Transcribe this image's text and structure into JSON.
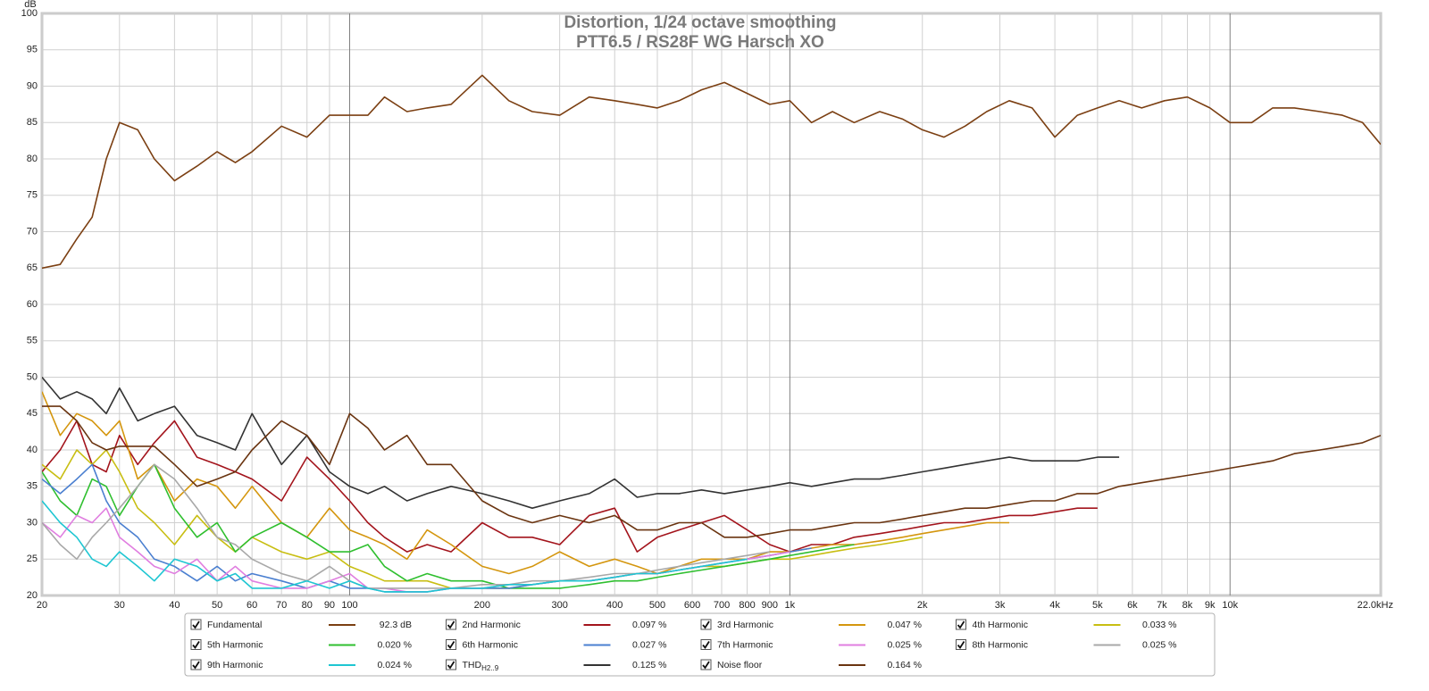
{
  "chart_data": {
    "type": "line",
    "title": "Distortion, 1/24 octave smoothing",
    "subtitle": "PTT6.5 / RS28F WG Harsch XO",
    "y_label": "dB",
    "log_x": true,
    "grid": true,
    "xlim": [
      20,
      22000
    ],
    "ylim": [
      20,
      100
    ],
    "yticks": [
      20,
      25,
      30,
      35,
      40,
      45,
      50,
      55,
      60,
      65,
      70,
      75,
      80,
      85,
      90,
      95,
      100
    ],
    "xticks": [
      20,
      30,
      40,
      50,
      60,
      70,
      80,
      90,
      100,
      200,
      300,
      400,
      500,
      600,
      700,
      800,
      900,
      {
        "value": 1000,
        "label": "1k"
      },
      {
        "value": 2000,
        "label": "2k"
      },
      {
        "value": 3000,
        "label": "3k"
      },
      {
        "value": 4000,
        "label": "4k"
      },
      {
        "value": 5000,
        "label": "5k"
      },
      {
        "value": 6000,
        "label": "6k"
      },
      {
        "value": 7000,
        "label": "7k"
      },
      {
        "value": 8000,
        "label": "8k"
      },
      {
        "value": 9000,
        "label": "9k"
      },
      {
        "value": 10000,
        "label": "10k"
      },
      {
        "value": 22000,
        "label": "22.0kHz"
      }
    ],
    "x": [
      20,
      22,
      24,
      26,
      28,
      30,
      33,
      36,
      40,
      45,
      50,
      55,
      60,
      70,
      80,
      90,
      100,
      110,
      120,
      135,
      150,
      170,
      200,
      230,
      260,
      300,
      350,
      400,
      450,
      500,
      560,
      630,
      710,
      800,
      900,
      1000,
      1120,
      1250,
      1400,
      1600,
      1800,
      2000,
      2240,
      2500,
      2800,
      3150,
      3550,
      4000,
      4500,
      5000,
      5600,
      6300,
      7100,
      8000,
      9000,
      10000,
      11200,
      12500,
      14000,
      16000,
      18000,
      20000,
      22000
    ],
    "series": [
      {
        "name": "Fundamental",
        "color": "#7b3f12",
        "readout": "92.3 dB",
        "values": [
          65,
          65.5,
          69,
          72,
          80,
          85,
          84,
          80,
          77,
          79,
          81,
          79.5,
          81,
          84.5,
          83,
          86,
          86,
          86,
          88.5,
          86.5,
          87,
          87.5,
          91.5,
          88,
          86.5,
          86,
          88.5,
          88,
          87.5,
          87,
          88,
          89.5,
          90.5,
          89,
          87.5,
          88,
          85,
          86.5,
          85,
          86.5,
          85.5,
          84,
          83,
          84.5,
          86.5,
          88,
          87,
          83,
          86,
          87,
          88,
          87,
          88,
          88.5,
          87,
          85,
          85,
          87,
          87,
          86.5,
          86,
          85,
          82
        ]
      },
      {
        "name": "2nd Harmonic",
        "color": "#a3141c",
        "readout": "0.097 %",
        "values": [
          37,
          40,
          44,
          38,
          37,
          42,
          38,
          41,
          44,
          39,
          38,
          37,
          36,
          33,
          39,
          36,
          33,
          30,
          28,
          26,
          27,
          26,
          30,
          28,
          28,
          27,
          31,
          32,
          26,
          28,
          29,
          30,
          31,
          29,
          27,
          26,
          27,
          27,
          28,
          28.5,
          29,
          29.5,
          30,
          30,
          30.5,
          31,
          31,
          31.5,
          32,
          32,
          null,
          null,
          null,
          null,
          null,
          null,
          null,
          null,
          null,
          null,
          null,
          null,
          null
        ]
      },
      {
        "name": "3rd Harmonic",
        "color": "#d4960e",
        "readout": "0.047 %",
        "values": [
          48,
          42,
          45,
          44,
          42,
          44,
          36,
          38,
          33,
          36,
          35,
          32,
          35,
          30,
          28,
          32,
          29,
          28,
          27,
          25,
          29,
          27,
          24,
          23,
          24,
          26,
          24,
          25,
          24,
          23,
          24,
          25,
          25,
          25,
          26,
          26,
          26.5,
          27,
          27,
          27.5,
          28,
          28.5,
          29,
          29.5,
          30,
          30,
          null,
          null,
          null,
          null,
          null,
          null,
          null,
          null,
          null,
          null,
          null,
          null,
          null,
          null,
          null,
          null,
          null
        ]
      },
      {
        "name": "4th Harmonic",
        "color": "#c8be12",
        "readout": "0.033 %",
        "values": [
          38,
          36,
          40,
          38,
          40,
          37,
          32,
          30,
          27,
          31,
          28,
          26,
          28,
          26,
          25,
          26,
          24,
          23,
          22,
          22,
          22,
          21,
          21,
          21,
          21.5,
          22,
          22,
          22.5,
          23,
          23,
          23.5,
          24,
          24,
          24.5,
          25,
          25,
          25.5,
          26,
          26.5,
          27,
          27.5,
          28,
          null,
          null,
          null,
          null,
          null,
          null,
          null,
          null,
          null,
          null,
          null,
          null,
          null,
          null,
          null,
          null,
          null,
          null,
          null,
          null,
          null
        ]
      },
      {
        "name": "5th Harmonic",
        "color": "#2fbf2f",
        "readout": "0.020 %",
        "values": [
          37,
          33,
          31,
          36,
          35,
          31,
          35,
          38,
          32,
          28,
          30,
          26,
          28,
          30,
          28,
          26,
          26,
          27,
          24,
          22,
          23,
          22,
          22,
          21,
          21,
          21,
          21.5,
          22,
          22,
          22.5,
          23,
          23.5,
          24,
          24.5,
          25,
          25.5,
          26,
          26.5,
          27,
          null,
          null,
          null,
          null,
          null,
          null,
          null,
          null,
          null,
          null,
          null,
          null,
          null,
          null,
          null,
          null,
          null,
          null,
          null,
          null,
          null,
          null,
          null,
          null
        ]
      },
      {
        "name": "6th Harmonic",
        "color": "#4a7fd0",
        "readout": "0.027 %",
        "values": [
          36,
          34,
          36,
          38,
          33,
          30,
          28,
          25,
          24,
          22,
          24,
          22,
          23,
          22,
          21,
          22,
          21,
          21,
          20.5,
          20.5,
          20.5,
          21,
          21,
          21,
          21.5,
          22,
          22,
          22.5,
          23,
          23,
          23.5,
          24,
          24.5,
          25,
          25.5,
          26,
          26.5,
          null,
          null,
          null,
          null,
          null,
          null,
          null,
          null,
          null,
          null,
          null,
          null,
          null,
          null,
          null,
          null,
          null,
          null,
          null,
          null,
          null,
          null,
          null,
          null,
          null,
          null
        ]
      },
      {
        "name": "7th Harmonic",
        "color": "#e07ee0",
        "readout": "0.025 %",
        "values": [
          30,
          28,
          31,
          30,
          32,
          28,
          26,
          24,
          23,
          25,
          22,
          24,
          22,
          21,
          21,
          22,
          23,
          21,
          21,
          20.5,
          20.5,
          21,
          21,
          21.5,
          21.5,
          22,
          22,
          22.5,
          23,
          23,
          23.5,
          24,
          24.5,
          25,
          25.5,
          26,
          null,
          null,
          null,
          null,
          null,
          null,
          null,
          null,
          null,
          null,
          null,
          null,
          null,
          null,
          null,
          null,
          null,
          null,
          null,
          null,
          null,
          null,
          null,
          null,
          null,
          null,
          null
        ]
      },
      {
        "name": "8th Harmonic",
        "color": "#a8a8a8",
        "readout": "0.025 %",
        "values": [
          30,
          27,
          25,
          28,
          30,
          32,
          35,
          38,
          36,
          32,
          28,
          27,
          25,
          23,
          22,
          24,
          22,
          21,
          21,
          21,
          21,
          21,
          21.5,
          21.5,
          22,
          22,
          22.5,
          23,
          23,
          23.5,
          24,
          24.5,
          25,
          25.5,
          26,
          null,
          null,
          null,
          null,
          null,
          null,
          null,
          null,
          null,
          null,
          null,
          null,
          null,
          null,
          null,
          null,
          null,
          null,
          null,
          null,
          null,
          null,
          null,
          null,
          null,
          null,
          null,
          null
        ]
      },
      {
        "name": "9th Harmonic",
        "color": "#1ec6d2",
        "readout": "0.024 %",
        "values": [
          33,
          30,
          28,
          25,
          24,
          26,
          24,
          22,
          25,
          24,
          22,
          23,
          21,
          21,
          22,
          21,
          22,
          21,
          20.5,
          20.5,
          20.5,
          21,
          21,
          21.5,
          21.5,
          22,
          22,
          22.5,
          23,
          23,
          23.5,
          24,
          24.5,
          25,
          null,
          null,
          null,
          null,
          null,
          null,
          null,
          null,
          null,
          null,
          null,
          null,
          null,
          null,
          null,
          null,
          null,
          null,
          null,
          null,
          null,
          null,
          null,
          null,
          null,
          null,
          null,
          null,
          null
        ]
      },
      {
        "name": "THD",
        "name_subscript": "H2..9",
        "color": "#333333",
        "readout": "0.125 %",
        "values": [
          50,
          47,
          48,
          47,
          45,
          48.5,
          44,
          45,
          46,
          42,
          41,
          40,
          45,
          38,
          42,
          37,
          35,
          34,
          35,
          33,
          34,
          35,
          34,
          33,
          32,
          33,
          34,
          36,
          33.5,
          34,
          34,
          34.5,
          34,
          34.5,
          35,
          35.5,
          35,
          35.5,
          36,
          36,
          36.5,
          37,
          37.5,
          38,
          38.5,
          39,
          38.5,
          38.5,
          38.5,
          39,
          39,
          null,
          null,
          null,
          null,
          null,
          null,
          null,
          null,
          null,
          null,
          null,
          null
        ]
      },
      {
        "name": "Noise floor",
        "color": "#6a3410",
        "readout": "0.164 %",
        "values": [
          46,
          46,
          44,
          41,
          40,
          40.5,
          40.5,
          40.5,
          38,
          35,
          36,
          37,
          40,
          44,
          42,
          38,
          45,
          43,
          40,
          42,
          38,
          38,
          33,
          31,
          30,
          31,
          30,
          31,
          29,
          29,
          30,
          30,
          28,
          28,
          28.5,
          29,
          29,
          29.5,
          30,
          30,
          30.5,
          31,
          31.5,
          32,
          32,
          32.5,
          33,
          33,
          34,
          34,
          35,
          35.5,
          36,
          36.5,
          37,
          37.5,
          38,
          38.5,
          39.5,
          40,
          40.5,
          41,
          42
        ]
      }
    ]
  }
}
